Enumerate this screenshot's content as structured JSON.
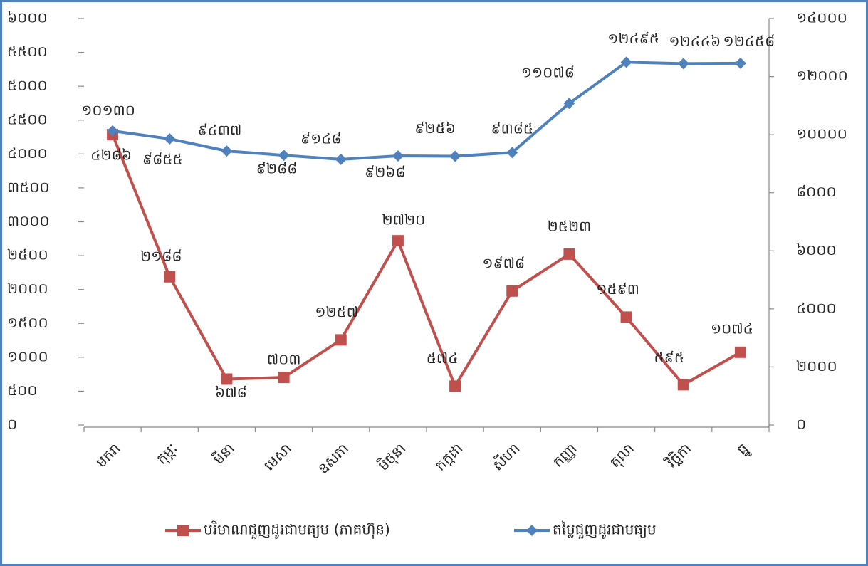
{
  "chart_data": {
    "type": "line",
    "categories": [
      "មករា",
      "កុម្ភៈ",
      "មីនា",
      "មេសា",
      "ឧសភា",
      "មិថុនា",
      "កក្កដា",
      "សីហា",
      "កញ្ញា",
      "តុលា",
      "វិច្ឆិកា",
      "ធ្នូ"
    ],
    "series": [
      {
        "name": "បរិមាណជួញដូរជាមធ្យម (ភាគហ៊ុន)",
        "color": "#c0504d",
        "marker": "square",
        "values": [
          4286,
          2188,
          678,
          703,
          1257,
          2720,
          574,
          1978,
          2523,
          1593,
          595,
          1074
        ],
        "value_labels": [
          "៤២៨៦",
          "២១៨៨",
          "៦៧៨",
          "៧០៣",
          "១២៥៧",
          "២៧២០",
          "៥៧៤",
          "១៩៧៨",
          "២៥២៣",
          "១៥៩៣",
          "៥៩៥",
          "១០៧៤"
        ]
      },
      {
        "name": "តម្លៃជួញដូរជាមធ្យម",
        "color": "#4f81bd",
        "marker": "diamond",
        "axis": "y2",
        "values": [
          10130,
          9855,
          9437,
          9288,
          9148,
          9268,
          9256,
          9385,
          11078,
          12495,
          12446,
          12458
        ],
        "value_labels": [
          "១០១៣០",
          "៩៨៥៥",
          "៩៤៣៧",
          "៩២៨៨",
          "៩១៤៨",
          "៩២៦៨",
          "៩២៥៦",
          "៩៣៨៥",
          "១១០៧៨",
          "១២៤៩៥",
          "១២៤៤៦",
          "១២៤៥៨"
        ]
      }
    ],
    "ylim": [
      0,
      6000
    ],
    "yticks": [
      {
        "value": 0,
        "label": "០"
      },
      {
        "value": 500,
        "label": "៥០០"
      },
      {
        "value": 1000,
        "label": "១០០០"
      },
      {
        "value": 1500,
        "label": "១៥០០"
      },
      {
        "value": 2000,
        "label": "២០០០"
      },
      {
        "value": 2500,
        "label": "២៥០០"
      },
      {
        "value": 3000,
        "label": "៣០០០"
      },
      {
        "value": 3500,
        "label": "៣៥០០"
      },
      {
        "value": 4000,
        "label": "៤០០០"
      },
      {
        "value": 4500,
        "label": "៤៥០០"
      },
      {
        "value": 5000,
        "label": "៥០០០"
      },
      {
        "value": 5500,
        "label": "៥៥០០"
      },
      {
        "value": 6000,
        "label": "៦០០០"
      }
    ],
    "y2lim": [
      0,
      14000
    ],
    "y2ticks": [
      {
        "value": 0,
        "label": "០"
      },
      {
        "value": 2000,
        "label": "២០០០"
      },
      {
        "value": 4000,
        "label": "៤០០០"
      },
      {
        "value": 6000,
        "label": "៦០០០"
      },
      {
        "value": 8000,
        "label": "៨០០០"
      },
      {
        "value": 10000,
        "label": "១០០០០"
      },
      {
        "value": 12000,
        "label": "១២០០០"
      },
      {
        "value": 14000,
        "label": "១៤០០០"
      }
    ],
    "legend": "bottom"
  }
}
